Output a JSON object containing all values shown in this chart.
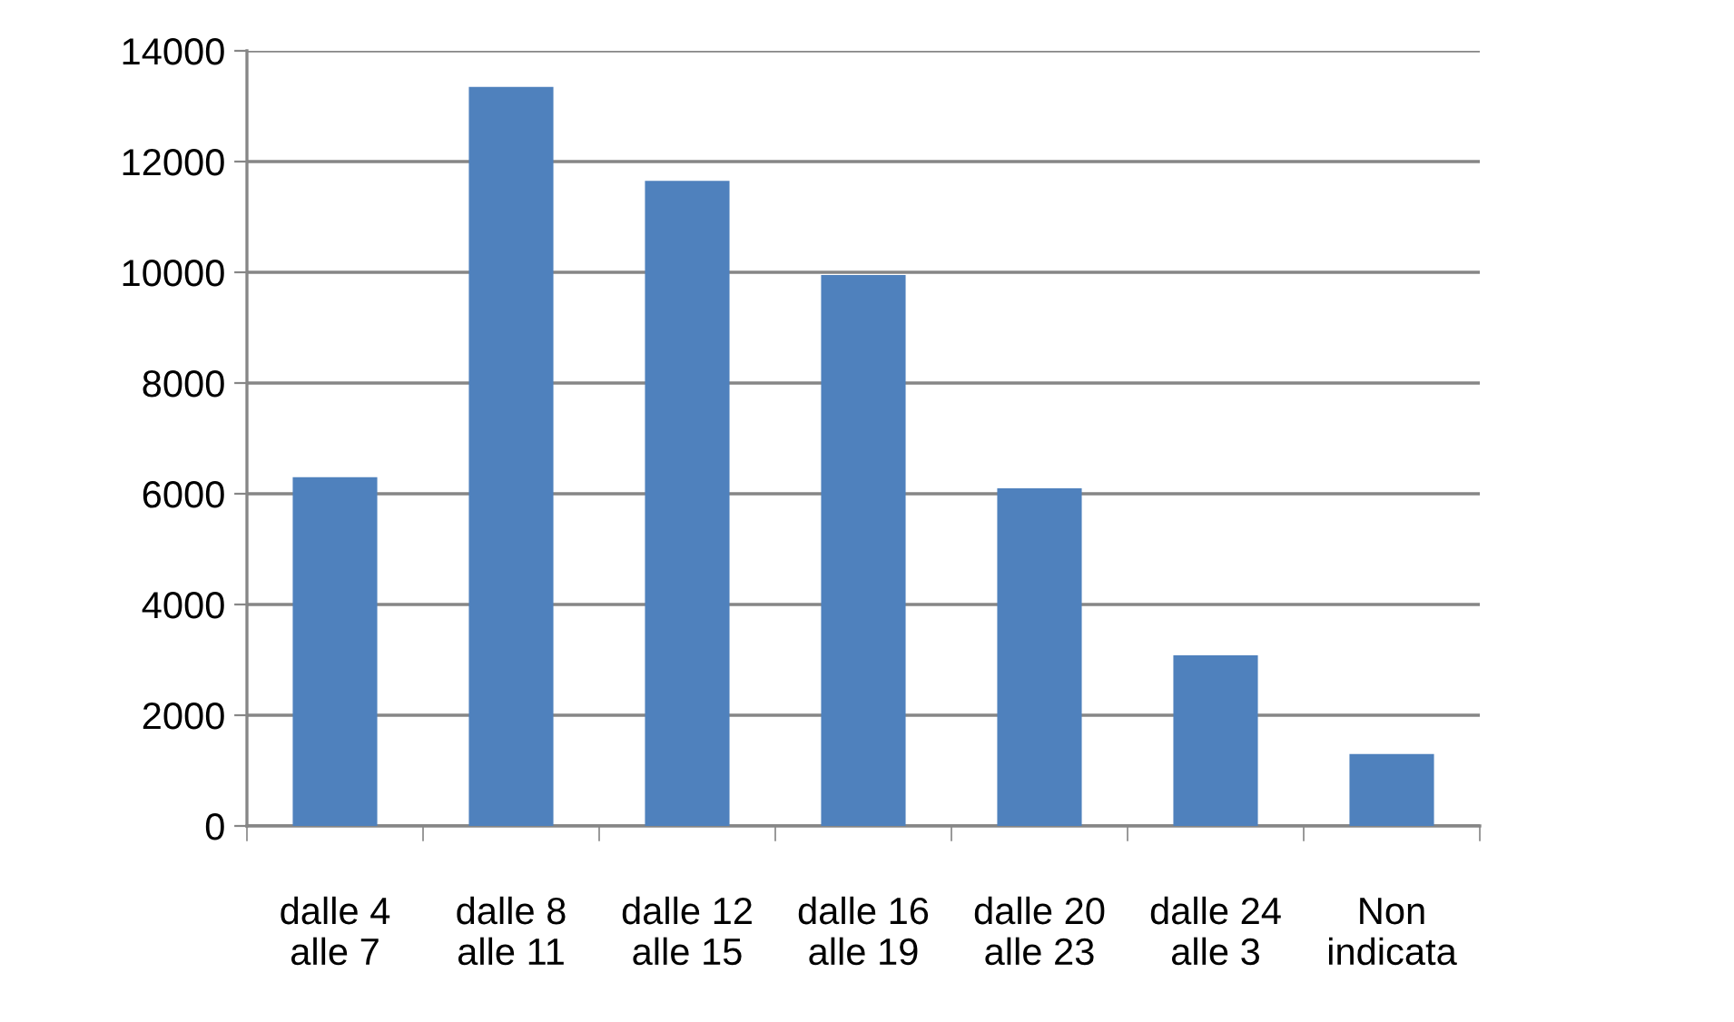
{
  "chart_data": {
    "type": "bar",
    "categories": [
      "dalle 4\nalle 7",
      "dalle 8\nalle 11",
      "dalle 12\nalle 15",
      "dalle 16\nalle 19",
      "dalle 20\nalle 23",
      "dalle 24\nalle 3",
      "Non\nindicata"
    ],
    "values": [
      6300,
      13350,
      11650,
      9950,
      6100,
      3080,
      1300
    ],
    "color": "#4f81bd",
    "ylim": [
      0,
      14000
    ],
    "yticks": [
      0,
      2000,
      4000,
      6000,
      8000,
      10000,
      12000,
      14000
    ],
    "grid": "y",
    "legend": false
  }
}
